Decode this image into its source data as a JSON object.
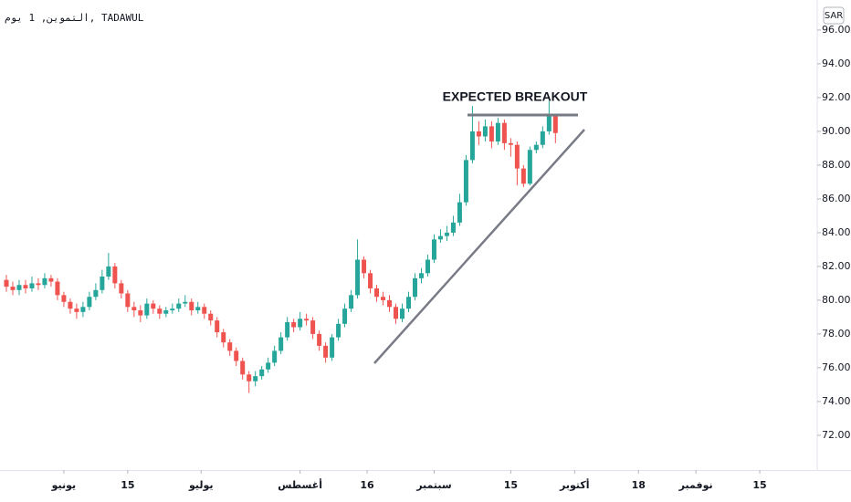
{
  "chart_data": {
    "type": "candlestick",
    "title": "التموين, 1 يوم, TADAWUL",
    "currency": "SAR",
    "annotation": "EXPECTED BREAKOUT",
    "up_color": "#26a69a",
    "down_color": "#ef5350",
    "x": [
      0,
      1,
      2,
      3,
      4,
      5,
      6,
      7,
      8,
      9,
      10,
      11,
      12,
      13,
      14,
      15,
      16,
      17,
      18,
      19,
      20,
      21,
      22,
      23,
      24,
      25,
      26,
      27,
      28,
      29,
      30,
      31,
      32,
      33,
      34,
      35,
      36,
      37,
      38,
      39,
      40,
      41,
      42,
      43,
      44,
      45,
      46,
      47,
      48,
      49,
      50,
      51,
      52,
      53,
      54,
      55,
      56,
      57,
      58,
      59,
      60,
      61,
      62,
      63,
      64,
      65,
      66,
      67,
      68,
      69,
      70,
      71,
      72,
      73,
      74,
      75,
      76,
      77,
      78,
      79,
      80,
      81,
      82,
      83,
      84,
      85,
      86
    ],
    "open": [
      81.2,
      80.8,
      80.6,
      80.9,
      80.7,
      81.0,
      80.9,
      81.3,
      81.1,
      80.3,
      79.9,
      79.5,
      79.3,
      79.6,
      80.2,
      80.6,
      81.4,
      82.0,
      81.0,
      80.4,
      79.6,
      79.4,
      79.1,
      79.8,
      79.5,
      79.2,
      79.4,
      79.5,
      79.8,
      79.9,
      79.4,
      79.6,
      79.2,
      78.8,
      78.1,
      77.5,
      77.0,
      76.4,
      75.6,
      75.2,
      75.5,
      75.9,
      76.3,
      77.0,
      77.8,
      78.7,
      78.4,
      78.9,
      78.8,
      78.0,
      77.3,
      76.6,
      77.8,
      78.6,
      79.5,
      80.3,
      82.4,
      81.6,
      80.7,
      80.2,
      80.0,
      79.6,
      78.9,
      79.5,
      80.2,
      81.3,
      81.6,
      82.4,
      83.6,
      83.8,
      84.0,
      84.6,
      85.8,
      88.3,
      90.0,
      89.7,
      90.3,
      89.4,
      90.5,
      89.3,
      89.2,
      87.8,
      86.9,
      88.9,
      89.2,
      90.0,
      90.9
    ],
    "high": [
      81.5,
      81.1,
      81.2,
      81.2,
      81.4,
      81.3,
      81.6,
      81.5,
      81.3,
      80.5,
      80.1,
      79.8,
      79.9,
      80.5,
      81.0,
      81.8,
      82.8,
      82.2,
      81.2,
      80.6,
      79.9,
      79.7,
      80.1,
      80.0,
      79.7,
      79.6,
      79.8,
      80.1,
      80.3,
      80.1,
      79.9,
      79.8,
      79.4,
      79.0,
      78.3,
      77.7,
      77.2,
      76.6,
      75.8,
      75.8,
      76.1,
      76.6,
      77.3,
      78.1,
      79.0,
      78.9,
      79.3,
      79.2,
      79.0,
      78.2,
      77.5,
      78.0,
      78.9,
      79.8,
      80.6,
      83.6,
      82.6,
      81.8,
      80.9,
      80.5,
      80.3,
      79.8,
      79.8,
      80.5,
      81.6,
      81.9,
      82.7,
      83.9,
      84.2,
      84.4,
      85.0,
      86.3,
      88.6,
      91.5,
      90.6,
      90.7,
      90.6,
      90.8,
      90.7,
      89.6,
      89.4,
      88.0,
      89.1,
      89.4,
      90.3,
      91.8,
      91.0
    ],
    "low": [
      80.5,
      80.3,
      80.3,
      80.4,
      80.5,
      80.6,
      80.7,
      80.8,
      80.0,
      79.6,
      79.2,
      78.9,
      79.0,
      79.4,
      80.0,
      80.4,
      81.2,
      80.7,
      80.1,
      79.3,
      79.0,
      78.7,
      78.9,
      79.2,
      78.9,
      79.0,
      79.2,
      79.3,
      79.6,
      79.1,
      79.2,
      78.9,
      78.5,
      77.8,
      77.2,
      76.7,
      76.1,
      75.3,
      74.5,
      74.9,
      75.3,
      75.7,
      76.1,
      76.8,
      77.6,
      78.1,
      78.2,
      78.5,
      77.7,
      77.0,
      76.3,
      76.4,
      77.6,
      78.4,
      79.3,
      80.1,
      81.3,
      80.4,
      79.9,
      79.7,
      79.3,
      78.6,
      78.7,
      79.3,
      80.0,
      81.0,
      81.4,
      82.2,
      83.4,
      83.5,
      83.8,
      84.4,
      85.6,
      88.1,
      89.2,
      89.4,
      89.0,
      89.2,
      88.9,
      88.5,
      86.8,
      86.7,
      86.8,
      88.7,
      89.0,
      89.8,
      89.3
    ],
    "close": [
      80.8,
      80.6,
      80.9,
      80.7,
      81.0,
      80.9,
      81.3,
      81.1,
      80.3,
      79.9,
      79.5,
      79.3,
      79.6,
      80.2,
      80.6,
      81.4,
      82.0,
      81.0,
      80.4,
      79.6,
      79.4,
      79.1,
      79.8,
      79.5,
      79.2,
      79.4,
      79.5,
      79.8,
      79.9,
      79.4,
      79.6,
      79.2,
      78.8,
      78.1,
      77.5,
      77.0,
      76.4,
      75.6,
      75.2,
      75.5,
      75.9,
      76.3,
      77.0,
      77.8,
      78.7,
      78.4,
      78.9,
      78.8,
      78.0,
      77.3,
      76.6,
      77.8,
      78.6,
      79.5,
      80.3,
      82.4,
      81.6,
      80.7,
      80.2,
      80.0,
      79.6,
      78.9,
      79.5,
      80.2,
      81.3,
      81.6,
      82.4,
      83.6,
      83.8,
      84.0,
      84.6,
      85.8,
      88.3,
      90.0,
      89.7,
      90.3,
      89.4,
      90.5,
      89.3,
      89.2,
      87.8,
      86.9,
      88.9,
      89.2,
      90.0,
      90.9,
      89.9
    ],
    "xlim": [
      -1,
      127
    ],
    "xticks": [
      {
        "value": 9,
        "label": "يونيو"
      },
      {
        "value": 19,
        "label": "15"
      },
      {
        "value": 30.5,
        "label": "يوليو"
      },
      {
        "value": 46,
        "label": "أغسطس"
      },
      {
        "value": 56.5,
        "label": "16"
      },
      {
        "value": 67,
        "label": "سبتمبر"
      },
      {
        "value": 79,
        "label": "15"
      },
      {
        "value": 89,
        "label": "أكتوبر"
      },
      {
        "value": 99,
        "label": "18"
      },
      {
        "value": 108,
        "label": "نوفمبر"
      },
      {
        "value": 118,
        "label": "15"
      }
    ],
    "ylim": [
      69.94,
      97.78
    ],
    "yticks": [
      {
        "value": 72,
        "label": "72.00"
      },
      {
        "value": 74,
        "label": "74.00"
      },
      {
        "value": 76,
        "label": "76.00"
      },
      {
        "value": 78,
        "label": "78.00"
      },
      {
        "value": 80,
        "label": "80.00"
      },
      {
        "value": 82,
        "label": "82.00"
      },
      {
        "value": 84,
        "label": "84.00"
      },
      {
        "value": 86,
        "label": "86.00"
      },
      {
        "value": 88,
        "label": "88.00"
      },
      {
        "value": 90,
        "label": "90.00"
      },
      {
        "value": 92,
        "label": "92.00"
      },
      {
        "value": 94,
        "label": "94.00"
      },
      {
        "value": 96,
        "label": "96.00"
      }
    ]
  }
}
